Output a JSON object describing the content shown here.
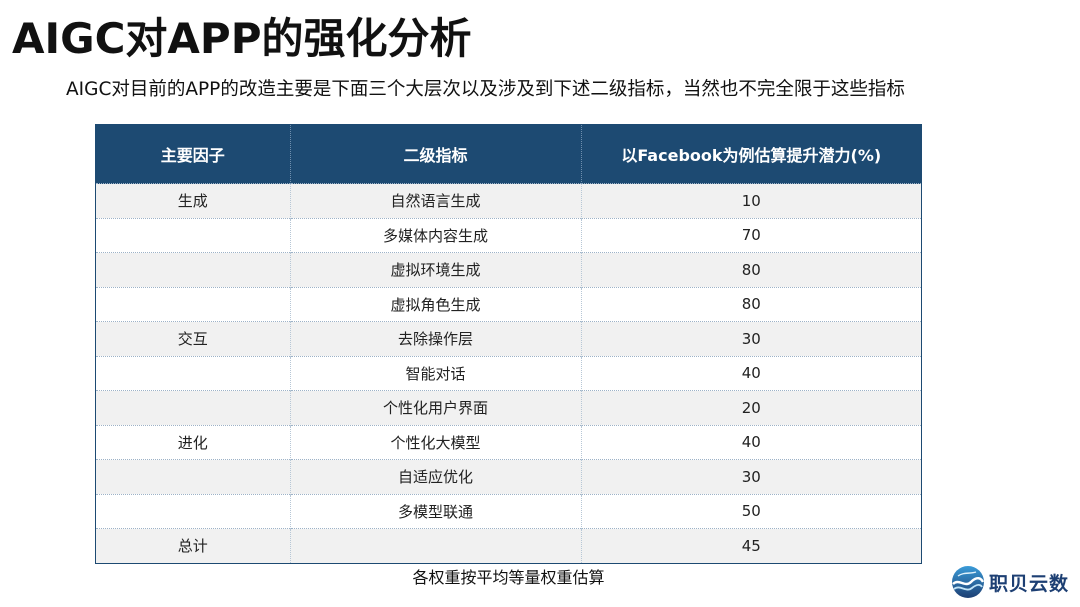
{
  "title": "AIGC对APP的强化分析",
  "subtitle": "AIGC对目前的APP的改造主要是下面三个大层次以及涉及到下述二级指标，当然也不完全限于这些指标",
  "table": {
    "headers": [
      "主要因子",
      "二级指标",
      "以Facebook为例估算提升潜力(%)"
    ],
    "rows": [
      [
        "生成",
        "自然语言生成",
        "10"
      ],
      [
        "",
        "多媒体内容生成",
        "70"
      ],
      [
        "",
        "虚拟环境生成",
        "80"
      ],
      [
        "",
        "虚拟角色生成",
        "80"
      ],
      [
        "交互",
        "去除操作层",
        "30"
      ],
      [
        "",
        "智能对话",
        "40"
      ],
      [
        "",
        "个性化用户界面",
        "20"
      ],
      [
        "进化",
        "个性化大模型",
        "40"
      ],
      [
        "",
        "自适应优化",
        "30"
      ],
      [
        "",
        "多模型联通",
        "50"
      ],
      [
        "总计",
        "",
        "45"
      ]
    ]
  },
  "note": "各权重按平均等量权重估算",
  "logo": {
    "text": "职贝云数",
    "icon": "globe-wave-logo-icon",
    "color": "#1d3f73"
  },
  "colors": {
    "header_bg": "#1d4a72",
    "row_alt_bg": "#f1f1f1"
  }
}
